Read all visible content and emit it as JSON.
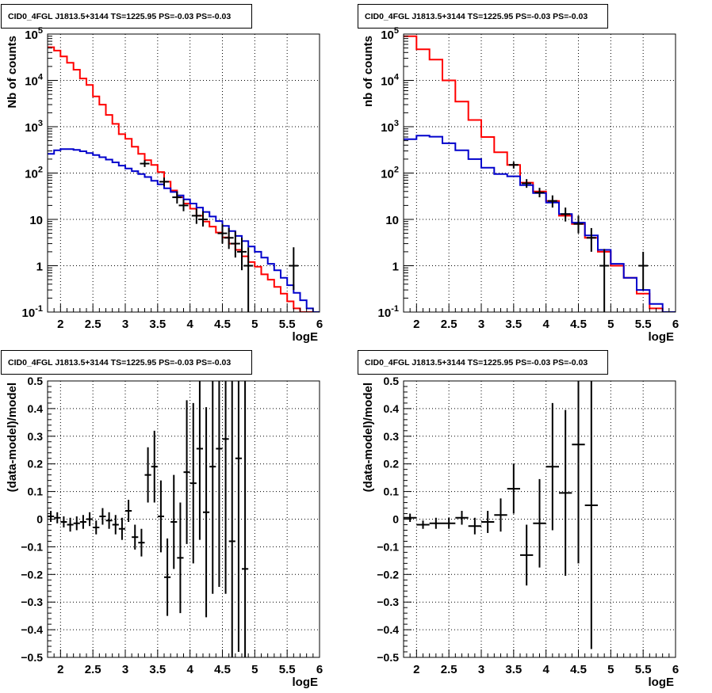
{
  "chart_data": [
    {
      "type": "line",
      "title": "CID0_4FGL J1813.5+3144 TS=1225.95 PS=-0.03 PS=-0.03",
      "xlabel": "logE",
      "ylabel": "Nb of counts",
      "xlim": [
        1.8,
        6.0
      ],
      "ylim": [
        0.1,
        100000
      ],
      "yscale": "log",
      "grid": true,
      "x_ticks": [
        "2",
        "2.5",
        "3",
        "3.5",
        "4",
        "4.5",
        "5",
        "5.5",
        "6"
      ],
      "y_ticks": [
        "10^{-1}",
        "1",
        "10",
        "10^{2}",
        "10^{3}",
        "10^{4}",
        "10^{5}"
      ],
      "bin_edges": [
        1.8,
        1.9,
        2.0,
        2.1,
        2.2,
        2.3,
        2.4,
        2.5,
        2.6,
        2.7,
        2.8,
        2.9,
        3.0,
        3.1,
        3.2,
        3.3,
        3.4,
        3.5,
        3.6,
        3.7,
        3.8,
        3.9,
        4.0,
        4.1,
        4.2,
        4.3,
        4.4,
        4.5,
        4.6,
        4.7,
        4.8,
        4.9,
        5.0,
        5.1,
        5.2,
        5.3,
        5.4,
        5.5,
        5.6,
        5.7,
        5.8,
        5.9,
        6.0
      ],
      "series": [
        {
          "color": "#ff0000",
          "style": "step",
          "values": [
            52000,
            44000,
            33000,
            24000,
            17000,
            11000,
            8000,
            4500,
            3000,
            1800,
            1150,
            690,
            550,
            370,
            260,
            190,
            150,
            105,
            65,
            42,
            30,
            22,
            17,
            12,
            9,
            7,
            5.2,
            4.1,
            3.0,
            2.2,
            1.6,
            1.2,
            0.95,
            0.65,
            0.5,
            0.35,
            0.25,
            0.17,
            0.12,
            0.1,
            0.1,
            0.1
          ]
        },
        {
          "color": "#0000cc",
          "style": "step",
          "values": [
            260,
            310,
            330,
            330,
            315,
            295,
            270,
            245,
            220,
            195,
            170,
            145,
            125,
            110,
            95,
            82,
            68,
            57,
            47,
            39,
            33,
            27,
            22,
            18,
            14.5,
            11.5,
            9.2,
            7.2,
            5.6,
            4.4,
            3.4,
            2.6,
            2.0,
            1.5,
            1.1,
            0.8,
            0.55,
            0.38,
            0.26,
            0.18,
            0.12,
            0.1
          ]
        },
        {
          "color": "#000000",
          "style": "errorbar",
          "points": [
            {
              "x": 3.3,
              "y": 160,
              "lo": 135,
              "hi": 190
            },
            {
              "x": 3.6,
              "y": 65,
              "lo": 52,
              "hi": 80
            },
            {
              "x": 3.8,
              "y": 30,
              "lo": 22,
              "hi": 40
            },
            {
              "x": 3.9,
              "y": 20,
              "lo": 15,
              "hi": 27
            },
            {
              "x": 4.1,
              "y": 12,
              "lo": 8,
              "hi": 17
            },
            {
              "x": 4.2,
              "y": 10,
              "lo": 7,
              "hi": 15
            },
            {
              "x": 4.5,
              "y": 5,
              "lo": 3,
              "hi": 8
            },
            {
              "x": 4.6,
              "y": 4,
              "lo": 2.3,
              "hi": 6.5
            },
            {
              "x": 4.7,
              "y": 3,
              "lo": 1.5,
              "hi": 5.5
            },
            {
              "x": 4.8,
              "y": 2,
              "lo": 0.8,
              "hi": 4
            },
            {
              "x": 4.9,
              "y": 1,
              "lo": 0.1,
              "hi": 2.5
            },
            {
              "x": 5.6,
              "y": 1,
              "lo": 0.3,
              "hi": 2.5
            }
          ]
        }
      ]
    },
    {
      "type": "line",
      "title": "CID0_4FGL J1813.5+3144 TS=1225.95 PS=-0.03 PS=-0.03",
      "xlabel": "logE",
      "ylabel": "nb of counts",
      "xlim": [
        1.8,
        6.0
      ],
      "ylim": [
        0.1,
        100000
      ],
      "yscale": "log",
      "grid": true,
      "x_ticks": [
        "2",
        "2.5",
        "3",
        "3.5",
        "4",
        "4.5",
        "5",
        "5.5",
        "6"
      ],
      "y_ticks": [
        "10^{-1}",
        "1",
        "10",
        "10^{2}",
        "10^{3}",
        "10^{4}",
        "10^{5}"
      ],
      "bin_edges": [
        1.8,
        2.0,
        2.2,
        2.4,
        2.6,
        2.8,
        3.0,
        3.2,
        3.4,
        3.6,
        3.8,
        4.0,
        4.2,
        4.4,
        4.6,
        4.8,
        5.0,
        5.2,
        5.4,
        5.6,
        5.8,
        6.0
      ],
      "series": [
        {
          "color": "#ff0000",
          "style": "step",
          "values": [
            90000,
            47000,
            28000,
            10000,
            3500,
            1400,
            600,
            280,
            150,
            62,
            40,
            25,
            12,
            8,
            4,
            2,
            1,
            0.55,
            0.25,
            0.12,
            0.1
          ]
        },
        {
          "color": "#0000cc",
          "style": "step",
          "values": [
            540,
            640,
            610,
            440,
            310,
            200,
            130,
            95,
            85,
            55,
            37,
            23,
            13,
            8.5,
            4.5,
            2.2,
            1.1,
            0.55,
            0.3,
            0.15,
            0.1
          ]
        },
        {
          "color": "#000000",
          "style": "errorbar",
          "points": [
            {
              "x": 3.5,
              "y": 150,
              "lo": 125,
              "hi": 175
            },
            {
              "x": 3.7,
              "y": 60,
              "lo": 48,
              "hi": 74
            },
            {
              "x": 3.9,
              "y": 38,
              "lo": 30,
              "hi": 48
            },
            {
              "x": 4.1,
              "y": 25,
              "lo": 18,
              "hi": 33
            },
            {
              "x": 4.3,
              "y": 13,
              "lo": 9,
              "hi": 18
            },
            {
              "x": 4.5,
              "y": 8,
              "lo": 5,
              "hi": 12
            },
            {
              "x": 4.7,
              "y": 4,
              "lo": 2,
              "hi": 6.5
            },
            {
              "x": 4.9,
              "y": 1,
              "lo": 0.1,
              "hi": 2.3
            },
            {
              "x": 5.5,
              "y": 1,
              "lo": 0.3,
              "hi": 2
            }
          ]
        }
      ]
    },
    {
      "type": "scatter",
      "title": "CID0_4FGL J1813.5+3144 TS=1225.95 PS=-0.03 PS=-0.03",
      "xlabel": "logE",
      "ylabel": "(data-model)/model",
      "xlim": [
        1.8,
        6.0
      ],
      "ylim": [
        -0.5,
        0.5
      ],
      "grid": true,
      "x_ticks": [
        "2",
        "2.5",
        "3",
        "3.5",
        "4",
        "4.5",
        "5",
        "5.5",
        "6"
      ],
      "y_ticks": [
        "−0.5",
        "−0.4",
        "−0.3",
        "−0.2",
        "−0.1",
        "0",
        "0.1",
        "0.2",
        "0.3",
        "0.4",
        "0.5"
      ],
      "half_bin_width": 0.05,
      "points": [
        {
          "x": 1.85,
          "y": 0.01,
          "err": 0.02
        },
        {
          "x": 1.95,
          "y": 0.005,
          "err": 0.02
        },
        {
          "x": 2.05,
          "y": -0.01,
          "err": 0.02
        },
        {
          "x": 2.15,
          "y": -0.02,
          "err": 0.025
        },
        {
          "x": 2.25,
          "y": -0.015,
          "err": 0.025
        },
        {
          "x": 2.35,
          "y": -0.01,
          "err": 0.025
        },
        {
          "x": 2.45,
          "y": 0.0,
          "err": 0.025
        },
        {
          "x": 2.55,
          "y": -0.03,
          "err": 0.025
        },
        {
          "x": 2.65,
          "y": 0.01,
          "err": 0.03
        },
        {
          "x": 2.75,
          "y": -0.005,
          "err": 0.03
        },
        {
          "x": 2.85,
          "y": -0.02,
          "err": 0.035
        },
        {
          "x": 2.95,
          "y": -0.035,
          "err": 0.04
        },
        {
          "x": 3.05,
          "y": 0.03,
          "err": 0.04
        },
        {
          "x": 3.15,
          "y": -0.065,
          "err": 0.045
        },
        {
          "x": 3.25,
          "y": -0.085,
          "err": 0.05
        },
        {
          "x": 3.35,
          "y": 0.16,
          "err": 0.1
        },
        {
          "x": 3.45,
          "y": 0.19,
          "err": 0.13
        },
        {
          "x": 3.55,
          "y": 0.01,
          "err": 0.13
        },
        {
          "x": 3.65,
          "y": -0.21,
          "err": 0.14
        },
        {
          "x": 3.75,
          "y": -0.01,
          "err": 0.17
        },
        {
          "x": 3.85,
          "y": -0.14,
          "err": 0.2
        },
        {
          "x": 3.95,
          "y": 0.17,
          "err": 0.26
        },
        {
          "x": 4.05,
          "y": 0.13,
          "err": 0.29
        },
        {
          "x": 4.15,
          "y": 0.255,
          "err": 0.33
        },
        {
          "x": 4.25,
          "y": 0.025,
          "err": 0.38
        },
        {
          "x": 4.35,
          "y": 0.19,
          "err": 0.46
        },
        {
          "x": 4.45,
          "y": 0.255,
          "err": 0.5
        },
        {
          "x": 4.55,
          "y": 0.29,
          "err": 0.56
        },
        {
          "x": 4.65,
          "y": -0.08,
          "err": 0.62
        },
        {
          "x": 4.75,
          "y": 0.22,
          "err": 0.7
        },
        {
          "x": 4.85,
          "y": -0.18,
          "err": 0.8
        }
      ]
    },
    {
      "type": "scatter",
      "title": "CID0_4FGL J1813.5+3144 TS=1225.95 PS=-0.03 PS=-0.03",
      "xlabel": "logE",
      "ylabel": "(data-model)/model",
      "xlim": [
        1.8,
        6.0
      ],
      "ylim": [
        -0.5,
        0.5
      ],
      "grid": true,
      "x_ticks": [
        "2",
        "2.5",
        "3",
        "3.5",
        "4",
        "4.5",
        "5",
        "5.5",
        "6"
      ],
      "y_ticks": [
        "−0.5",
        "−0.4",
        "−0.3",
        "−0.2",
        "−0.1",
        "0",
        "0.1",
        "0.2",
        "0.3",
        "0.4",
        "0.5"
      ],
      "half_bin_width": 0.1,
      "points": [
        {
          "x": 1.9,
          "y": 0.005,
          "err": 0.015
        },
        {
          "x": 2.1,
          "y": -0.02,
          "err": 0.015
        },
        {
          "x": 2.3,
          "y": -0.015,
          "err": 0.02
        },
        {
          "x": 2.5,
          "y": -0.015,
          "err": 0.02
        },
        {
          "x": 2.7,
          "y": 0.005,
          "err": 0.025
        },
        {
          "x": 2.9,
          "y": -0.025,
          "err": 0.03
        },
        {
          "x": 3.1,
          "y": -0.01,
          "err": 0.04
        },
        {
          "x": 3.3,
          "y": 0.015,
          "err": 0.06
        },
        {
          "x": 3.5,
          "y": 0.11,
          "err": 0.09
        },
        {
          "x": 3.7,
          "y": -0.13,
          "err": 0.11
        },
        {
          "x": 3.9,
          "y": -0.015,
          "err": 0.16
        },
        {
          "x": 4.1,
          "y": 0.19,
          "err": 0.23
        },
        {
          "x": 4.3,
          "y": 0.095,
          "err": 0.3
        },
        {
          "x": 4.5,
          "y": 0.27,
          "err": 0.43
        },
        {
          "x": 4.7,
          "y": 0.05,
          "err": 0.52
        }
      ]
    }
  ]
}
